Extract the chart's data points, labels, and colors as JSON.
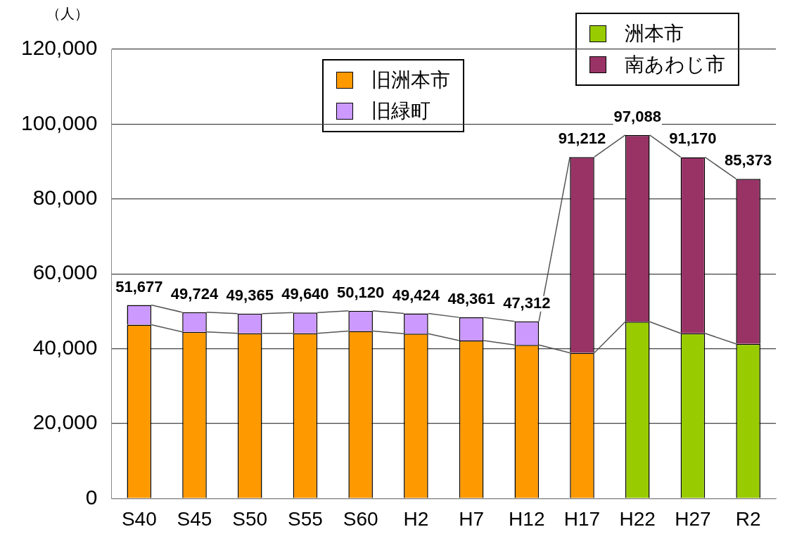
{
  "chart_data": {
    "type": "bar",
    "stacked": true,
    "ylabel": "（人）",
    "categories": [
      "S40",
      "S45",
      "S50",
      "S55",
      "S60",
      "H2",
      "H7",
      "H12",
      "H17",
      "H22",
      "H27",
      "R2"
    ],
    "series": [
      {
        "name": "旧洲本市",
        "color": "#ff9900",
        "values": [
          46400,
          44500,
          44100,
          44100,
          44700,
          44000,
          42200,
          41000,
          38900,
          null,
          null,
          null
        ]
      },
      {
        "name": "旧緑町",
        "color": "#cc99ff",
        "values": [
          5277,
          5224,
          5265,
          5540,
          5420,
          5424,
          6161,
          6312,
          null,
          null,
          null,
          null
        ]
      },
      {
        "name": "洲本市",
        "color": "#99cc00",
        "values": [
          null,
          null,
          null,
          null,
          null,
          null,
          null,
          null,
          null,
          47200,
          44100,
          41300
        ]
      },
      {
        "name": "南あわじ市",
        "color": "#993366",
        "values": [
          null,
          null,
          null,
          null,
          null,
          null,
          null,
          null,
          52312,
          49888,
          47070,
          44073
        ]
      }
    ],
    "totals": [
      "51,677",
      "49,724",
      "49,365",
      "49,640",
      "50,120",
      "49,424",
      "48,361",
      "47,312",
      "91,212",
      "97,088",
      "91,170",
      "85,373"
    ],
    "ylim": [
      0,
      120000
    ],
    "yticks": [
      {
        "value": 0,
        "label": "0"
      },
      {
        "value": 20000,
        "label": "20,000"
      },
      {
        "value": 40000,
        "label": "40,000"
      },
      {
        "value": 60000,
        "label": "60,000"
      },
      {
        "value": 80000,
        "label": "80,000"
      },
      {
        "value": 100000,
        "label": "100,000"
      },
      {
        "value": 120000,
        "label": "120,000"
      }
    ],
    "grid": "y",
    "legend": "top right"
  }
}
